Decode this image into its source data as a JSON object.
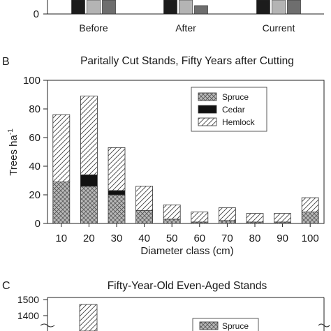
{
  "panel_a_partial": {
    "ylabel_zero": "0",
    "categories": [
      "Before",
      "After",
      "Current"
    ],
    "bar_colors": [
      "#1c1c1c",
      "#b4b4b4",
      "#6e6e6e"
    ]
  },
  "panel_b": {
    "panel_label": "B",
    "title": "Paritally Cut Stands, Fifty Years after Cutting",
    "ylabel": "Trees ha",
    "ylabel_sup": "-1",
    "xlabel": "Diameter class (cm)"
  },
  "panel_c_partial": {
    "panel_label": "C",
    "title": "Fifty-Year-Old Even-Aged Stands",
    "yticks": [
      "1500",
      "1400"
    ],
    "legend_first": "Spruce"
  },
  "chart_data": [
    {
      "type": "bar",
      "categories": [
        "Before",
        "After",
        "Current"
      ],
      "series": [
        {
          "values": [
            null,
            null,
            null
          ],
          "color": "#1c1c1c"
        },
        {
          "values": [
            null,
            null,
            null
          ],
          "color": "#b4b4b4"
        },
        {
          "values": [
            null,
            null,
            null
          ],
          "color": "#6e6e6e"
        }
      ],
      "yticks": [
        "0"
      ]
    },
    {
      "type": "bar",
      "stacked": true,
      "title": "Paritally Cut Stands, Fifty Years after Cutting",
      "xlabel": "Diameter class (cm)",
      "ylabel": "Trees ha-1",
      "categories": [
        "10",
        "20",
        "30",
        "40",
        "50",
        "60",
        "70",
        "80",
        "90",
        "100"
      ],
      "ylim": [
        0,
        100
      ],
      "yticks": [
        0,
        20,
        40,
        60,
        80,
        100
      ],
      "legend_position": "top-right",
      "series": [
        {
          "name": "Spruce",
          "pattern": "crosshatch",
          "values": [
            29,
            26,
            20,
            9,
            3,
            1,
            2,
            1,
            1,
            8
          ]
        },
        {
          "name": "Cedar",
          "pattern": "solid-black",
          "values": [
            0,
            8,
            3,
            0,
            0,
            0,
            0,
            0,
            0,
            0
          ]
        },
        {
          "name": "Hemlock",
          "pattern": "diagonal",
          "values": [
            47,
            55,
            30,
            17,
            10,
            7,
            9,
            6,
            6,
            10
          ]
        }
      ]
    },
    {
      "type": "bar",
      "stacked": true,
      "title": "Fifty-Year-Old Even-Aged Stands",
      "yticks": [
        1400,
        1500
      ],
      "series": [
        {
          "name": "Spruce",
          "pattern": "crosshatch",
          "values": []
        },
        {
          "pattern": "diagonal",
          "values": [
            1465
          ]
        }
      ]
    }
  ]
}
